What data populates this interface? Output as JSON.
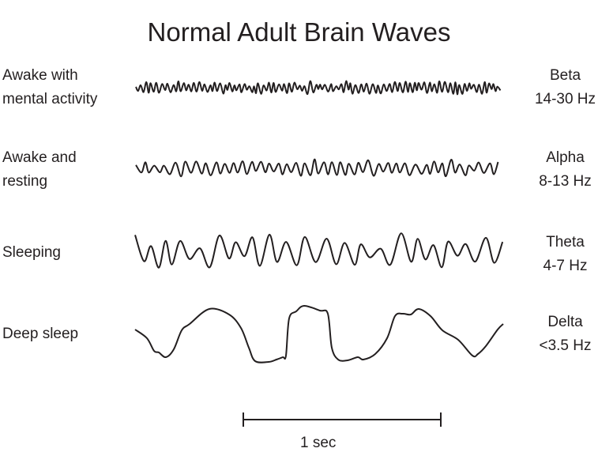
{
  "title": "Normal Adult Brain Waves",
  "rows": [
    {
      "state_lines": [
        "Awake with",
        "mental activity"
      ],
      "wave": "Beta",
      "range": "14-30 Hz"
    },
    {
      "state_lines": [
        "Awake and",
        "resting"
      ],
      "wave": "Alpha",
      "range": "8-13 Hz"
    },
    {
      "state_lines": [
        "Sleeping"
      ],
      "wave": "Theta",
      "range": "4-7 Hz"
    },
    {
      "state_lines": [
        "Deep sleep"
      ],
      "wave": "Delta",
      "range": "<3.5 Hz"
    }
  ],
  "scale_bar": {
    "label": "1 sec"
  },
  "colors": {
    "ink": "#231f20"
  }
}
